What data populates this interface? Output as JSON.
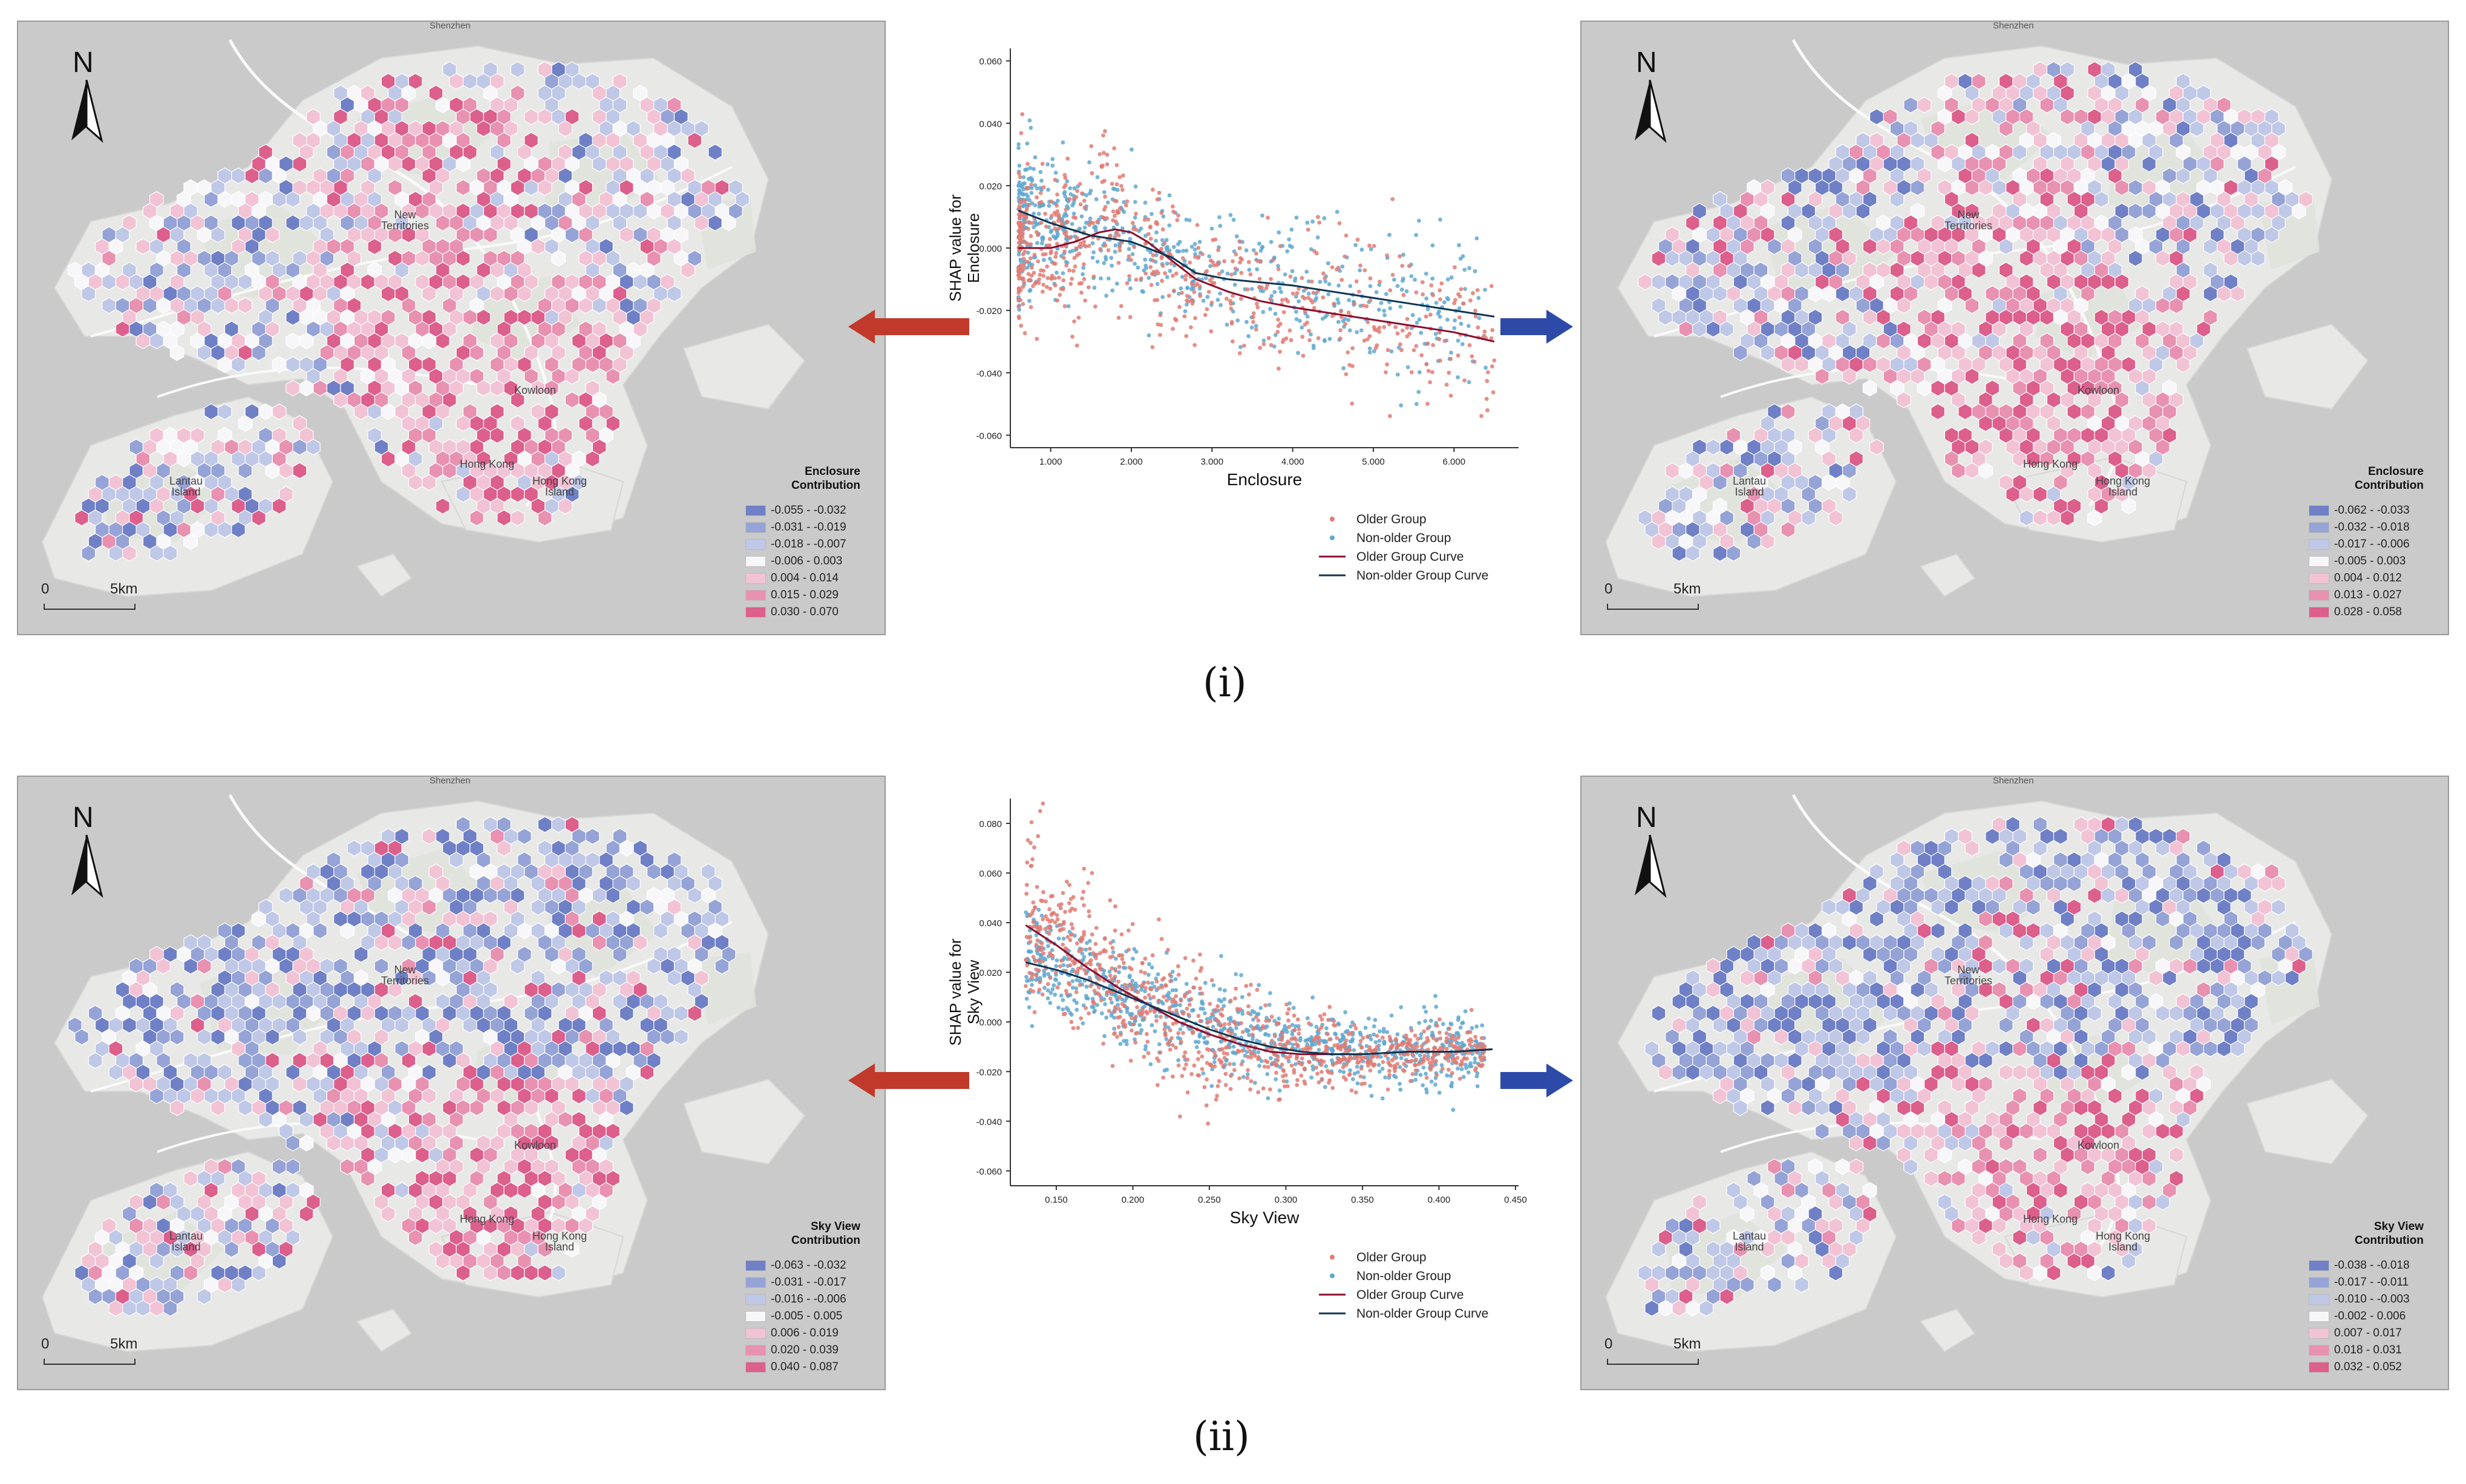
{
  "colors": {
    "older": "#e07b73",
    "non_older": "#5fa8d0",
    "older_curve": "#8b0e2e",
    "non_older_curve": "#0f3654",
    "arrow_left": "#c0392b",
    "arrow_right": "#2d4aa8",
    "map_bg": "#c9cac9",
    "land": "#e8e9e7"
  },
  "map_common": {
    "north": "N",
    "scale_zero": "0",
    "scale_km": "5km",
    "places": {
      "shenzhen": "Shenzhen",
      "new_territories": "New\nTerritories",
      "kowloon": "Kowloon",
      "hong_kong": "Hong Kong",
      "hong_kong_island": "Hong Kong\nIsland",
      "lantau": "Lantau\nIsland"
    }
  },
  "panels": [
    {
      "label": "(i)",
      "left_map": {
        "legend_title": "Enclosure\nContribution",
        "legend": [
          {
            "range": "-0.055 - -0.032",
            "color": "#6f80c6"
          },
          {
            "range": "-0.031 - -0.019",
            "color": "#95a3d6"
          },
          {
            "range": "-0.018 - -0.007",
            "color": "#c0c8e8"
          },
          {
            "range": "-0.006 - 0.003",
            "color": "#f7f7f9"
          },
          {
            "range": "0.004 - 0.014",
            "color": "#f2c3d4"
          },
          {
            "range": "0.015 - 0.029",
            "color": "#e891b0"
          },
          {
            "range": "0.030 - 0.070",
            "color": "#dc5f8c"
          }
        ]
      },
      "right_map": {
        "legend_title": "Enclosure\nContribution",
        "legend": [
          {
            "range": "-0.062 - -0.033",
            "color": "#6f80c6"
          },
          {
            "range": "-0.032 - -0.018",
            "color": "#95a3d6"
          },
          {
            "range": "-0.017 - -0.006",
            "color": "#c0c8e8"
          },
          {
            "range": "-0.005 - 0.003",
            "color": "#f7f7f9"
          },
          {
            "range": "0.004 - 0.012",
            "color": "#f2c3d4"
          },
          {
            "range": "0.013 - 0.027",
            "color": "#e891b0"
          },
          {
            "range": "0.028 - 0.058",
            "color": "#dc5f8c"
          }
        ]
      }
    },
    {
      "label": "(ii)",
      "left_map": {
        "legend_title": "Sky View\nContribution",
        "legend": [
          {
            "range": "-0.063 - -0.032",
            "color": "#6f80c6"
          },
          {
            "range": "-0.031 - -0.017",
            "color": "#95a3d6"
          },
          {
            "range": "-0.016 - -0.006",
            "color": "#c0c8e8"
          },
          {
            "range": "-0.005 - 0.005",
            "color": "#f7f7f9"
          },
          {
            "range": "0.006 - 0.019",
            "color": "#f2c3d4"
          },
          {
            "range": "0.020 - 0.039",
            "color": "#e891b0"
          },
          {
            "range": "0.040 - 0.087",
            "color": "#dc5f8c"
          }
        ]
      },
      "right_map": {
        "legend_title": "Sky View\nContribution",
        "legend": [
          {
            "range": "-0.038 - -0.018",
            "color": "#6f80c6"
          },
          {
            "range": "-0.017 - -0.011",
            "color": "#95a3d6"
          },
          {
            "range": "-0.010 - -0.003",
            "color": "#c0c8e8"
          },
          {
            "range": "-0.002 - 0.006",
            "color": "#f7f7f9"
          },
          {
            "range": "0.007 - 0.017",
            "color": "#f2c3d4"
          },
          {
            "range": "0.018 - 0.031",
            "color": "#e891b0"
          },
          {
            "range": "0.032 - 0.052",
            "color": "#dc5f8c"
          }
        ]
      }
    }
  ],
  "chart_data": [
    {
      "type": "scatter",
      "title": "",
      "xlabel": "Enclosure",
      "ylabel": "SHAP value for\nEnclosure",
      "xlim": [
        0.5,
        6.8
      ],
      "ylim": [
        -0.064,
        0.064
      ],
      "xticks": [
        1.0,
        2.0,
        3.0,
        4.0,
        5.0,
        6.0
      ],
      "xtick_labels": [
        "1.000",
        "2.000",
        "3.000",
        "4.000",
        "5.000",
        "6.000"
      ],
      "yticks": [
        -0.06,
        -0.04,
        -0.02,
        0.0,
        0.02,
        0.04,
        0.06
      ],
      "ytick_labels": [
        "-0.060",
        "-0.040",
        "-0.020",
        "0.000",
        "0.020",
        "0.040",
        "0.060"
      ],
      "legend": [
        "Older Group",
        "Non-older Group",
        "Older Group Curve",
        "Non-older Group Curve"
      ],
      "legend_position": "bottom-right",
      "series": [
        {
          "name": "Older Group Curve",
          "x": [
            0.6,
            1.0,
            1.3,
            1.6,
            1.8,
            2.0,
            2.2,
            2.5,
            2.8,
            3.2,
            3.6,
            4.0,
            4.5,
            5.0,
            5.5,
            6.0,
            6.5
          ],
          "y": [
            0.0,
            0.0,
            0.002,
            0.005,
            0.006,
            0.005,
            0.002,
            -0.004,
            -0.01,
            -0.014,
            -0.017,
            -0.019,
            -0.021,
            -0.023,
            -0.025,
            -0.027,
            -0.03
          ]
        },
        {
          "name": "Non-older Group Curve",
          "x": [
            0.6,
            1.0,
            1.5,
            2.0,
            2.5,
            2.8,
            3.2,
            3.6,
            4.0,
            4.5,
            5.0,
            5.5,
            6.0,
            6.5
          ],
          "y": [
            0.012,
            0.008,
            0.004,
            0.002,
            -0.003,
            -0.008,
            -0.01,
            -0.011,
            -0.012,
            -0.014,
            -0.016,
            -0.018,
            -0.02,
            -0.022
          ]
        }
      ],
      "scatter_model": {
        "older": {
          "count": 650,
          "seed": 11,
          "points": [
            [
              0.6,
              0.0,
              0.012
            ],
            [
              1.0,
              0.002,
              0.012
            ],
            [
              1.4,
              0.004,
              0.016
            ],
            [
              1.7,
              0.02,
              0.012
            ],
            [
              2.0,
              0.0,
              0.014
            ],
            [
              2.4,
              -0.004,
              0.012
            ],
            [
              2.8,
              -0.012,
              0.01
            ],
            [
              3.5,
              -0.016,
              0.012
            ],
            [
              4.5,
              -0.02,
              0.013
            ],
            [
              5.5,
              -0.024,
              0.014
            ],
            [
              6.5,
              -0.028,
              0.012
            ]
          ]
        },
        "non_older": {
          "count": 650,
          "seed": 29,
          "points": [
            [
              0.6,
              0.012,
              0.014
            ],
            [
              1.0,
              0.008,
              0.01
            ],
            [
              1.5,
              0.006,
              0.01
            ],
            [
              2.0,
              0.002,
              0.01
            ],
            [
              2.5,
              -0.004,
              0.008
            ],
            [
              3.0,
              -0.008,
              0.01
            ],
            [
              4.0,
              -0.012,
              0.012
            ],
            [
              5.0,
              -0.016,
              0.013
            ],
            [
              6.0,
              -0.02,
              0.012
            ],
            [
              6.5,
              -0.022,
              0.012
            ]
          ]
        }
      }
    },
    {
      "type": "scatter",
      "title": "",
      "xlabel": "Sky View",
      "ylabel": "SHAP value for\nSky View",
      "xlim": [
        0.12,
        0.452
      ],
      "ylim": [
        -0.066,
        0.09
      ],
      "xticks": [
        0.15,
        0.2,
        0.25,
        0.3,
        0.35,
        0.4,
        0.45
      ],
      "xtick_labels": [
        "0.150",
        "0.200",
        "0.250",
        "0.300",
        "0.350",
        "0.400",
        "0.450"
      ],
      "yticks": [
        -0.06,
        -0.04,
        -0.02,
        0.0,
        0.02,
        0.04,
        0.06,
        0.08
      ],
      "ytick_labels": [
        "-0.060",
        "-0.040",
        "-0.020",
        "0.000",
        "0.020",
        "0.040",
        "0.060",
        "0.080"
      ],
      "legend": [
        "Older Group",
        "Non-older Group",
        "Older Group Curve",
        "Non-older Group Curve"
      ],
      "legend_position": "bottom-right",
      "series": [
        {
          "name": "Older Group Curve",
          "x": [
            0.13,
            0.15,
            0.17,
            0.19,
            0.21,
            0.23,
            0.25,
            0.27,
            0.29,
            0.31,
            0.33,
            0.35,
            0.38,
            0.41,
            0.435
          ],
          "y": [
            0.039,
            0.031,
            0.022,
            0.014,
            0.007,
            0.0,
            -0.005,
            -0.009,
            -0.012,
            -0.013,
            -0.013,
            -0.013,
            -0.012,
            -0.012,
            -0.011
          ]
        },
        {
          "name": "Non-older Group Curve",
          "x": [
            0.13,
            0.15,
            0.17,
            0.19,
            0.21,
            0.23,
            0.25,
            0.27,
            0.29,
            0.31,
            0.33,
            0.35,
            0.38,
            0.41,
            0.435
          ],
          "y": [
            0.024,
            0.021,
            0.017,
            0.012,
            0.007,
            0.002,
            -0.003,
            -0.007,
            -0.01,
            -0.012,
            -0.013,
            -0.013,
            -0.012,
            -0.012,
            -0.011
          ]
        }
      ],
      "scatter_model": {
        "older": {
          "count": 900,
          "seed": 7,
          "points": [
            [
              0.13,
              0.04,
              0.018
            ],
            [
              0.16,
              0.03,
              0.015
            ],
            [
              0.19,
              0.015,
              0.012
            ],
            [
              0.22,
              0.003,
              0.012
            ],
            [
              0.25,
              -0.005,
              0.014
            ],
            [
              0.28,
              -0.01,
              0.012
            ],
            [
              0.31,
              -0.013,
              0.008
            ],
            [
              0.35,
              -0.013,
              0.005
            ],
            [
              0.4,
              -0.012,
              0.005
            ],
            [
              0.43,
              -0.011,
              0.004
            ]
          ]
        },
        "non_older": {
          "count": 900,
          "seed": 41,
          "points": [
            [
              0.13,
              0.024,
              0.01
            ],
            [
              0.16,
              0.02,
              0.01
            ],
            [
              0.19,
              0.012,
              0.01
            ],
            [
              0.22,
              0.004,
              0.01
            ],
            [
              0.25,
              -0.002,
              0.01
            ],
            [
              0.28,
              -0.007,
              0.009
            ],
            [
              0.31,
              -0.011,
              0.007
            ],
            [
              0.35,
              -0.012,
              0.007
            ],
            [
              0.4,
              -0.012,
              0.008
            ],
            [
              0.43,
              -0.011,
              0.006
            ]
          ]
        }
      }
    }
  ]
}
